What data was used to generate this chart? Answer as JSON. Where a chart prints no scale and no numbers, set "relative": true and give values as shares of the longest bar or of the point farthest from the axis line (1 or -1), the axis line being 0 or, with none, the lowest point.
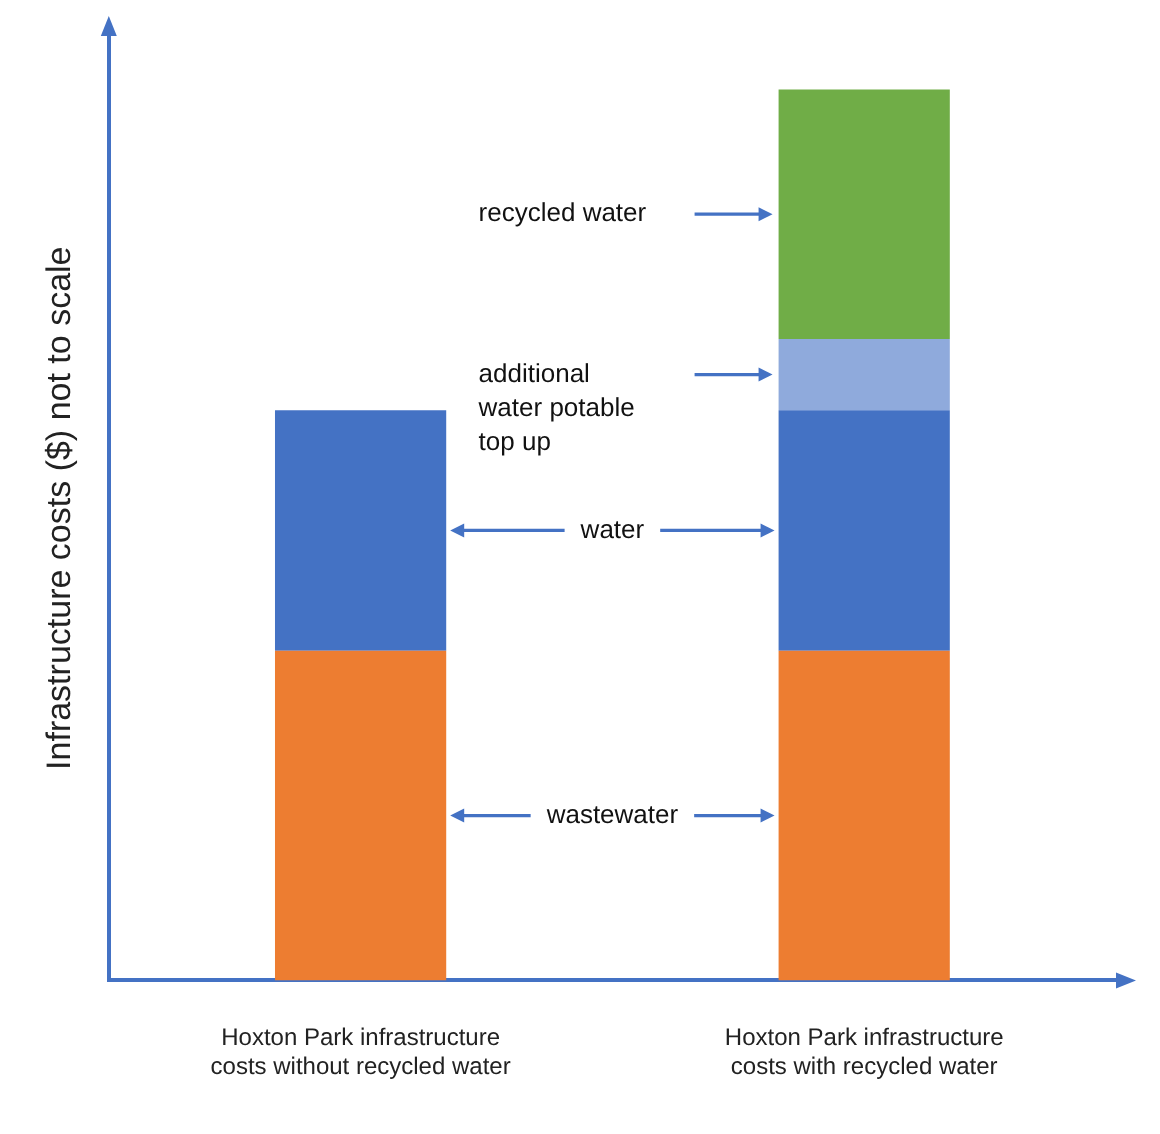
{
  "chart_data": {
    "type": "bar",
    "ylabel": "Infrastructure costs ($) not to scale",
    "categories": [
      "Hoxton Park infrastructure costs without recycled water",
      "Hoxton Park infrastructure costs with recycled water"
    ],
    "stacked": true,
    "relative": true,
    "series": [
      {
        "color": "#ed7d31",
        "values": [
          0.37,
          0.37
        ]
      },
      {
        "color": "#4472c4",
        "values": [
          0.27,
          0.27
        ]
      },
      {
        "color": "#8faadc",
        "values": [
          null,
          0.08
        ]
      },
      {
        "color": "#70ad47",
        "values": [
          null,
          0.28
        ]
      }
    ],
    "annotations": [
      "recycled water",
      "additional water potable top up",
      "water",
      "wastewater"
    ]
  }
}
